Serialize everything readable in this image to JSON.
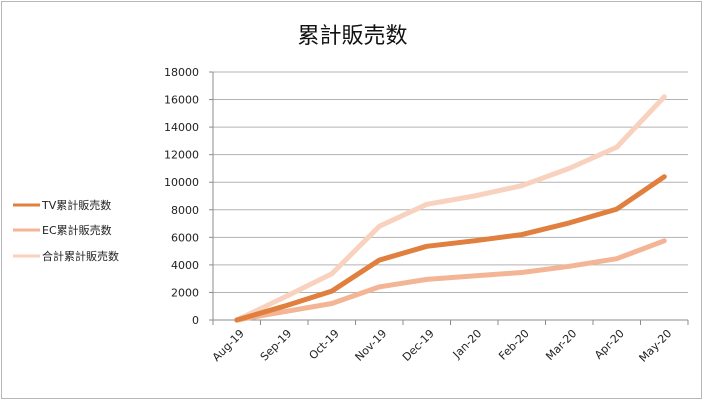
{
  "chart_data": {
    "type": "line",
    "title": "累計販売数",
    "xlabel": "",
    "ylabel": "",
    "categories": [
      "Aug-19",
      "Sep-19",
      "Oct-19",
      "Nov-19",
      "Dec-19",
      "Jan-20",
      "Feb-20",
      "Mar-20",
      "Apr-20",
      "May-20"
    ],
    "ylim": [
      0,
      18000
    ],
    "yticks": [
      0,
      2000,
      4000,
      6000,
      8000,
      10000,
      12000,
      14000,
      16000,
      18000
    ],
    "grid": "horizontal",
    "legend_position": "left",
    "series": [
      {
        "name": "TV累計販売数",
        "color": "#e07f3e",
        "values": [
          0,
          1000,
          2100,
          4350,
          5350,
          5750,
          6200,
          7050,
          8050,
          10400
        ]
      },
      {
        "name": "EC累計販売数",
        "color": "#f3b595",
        "values": [
          0,
          600,
          1200,
          2400,
          2950,
          3200,
          3450,
          3900,
          4450,
          5750
        ]
      },
      {
        "name": "合計累計販売数",
        "color": "#f8d2be",
        "values": [
          0,
          1650,
          3350,
          6800,
          8400,
          9000,
          9750,
          11000,
          12550,
          16200
        ]
      }
    ]
  }
}
